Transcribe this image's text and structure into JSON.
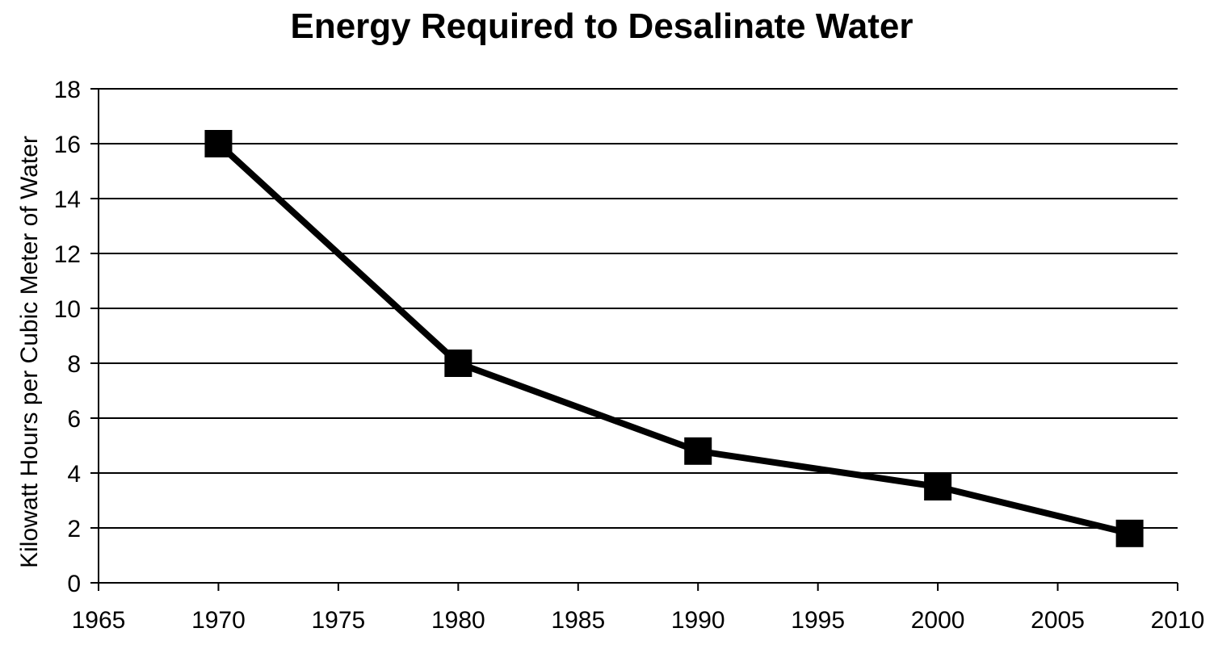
{
  "chart_data": {
    "type": "line",
    "title": "Energy Required to Desalinate Water",
    "xlabel": "",
    "ylabel": "Kilowatt Hours per Cubic Meter of Water",
    "xlim": [
      1965,
      2010
    ],
    "ylim": [
      0,
      18
    ],
    "x_ticks": [
      1965,
      1970,
      1975,
      1980,
      1985,
      1990,
      1995,
      2000,
      2005,
      2010
    ],
    "y_ticks": [
      0,
      2,
      4,
      6,
      8,
      10,
      12,
      14,
      16,
      18
    ],
    "grid": "horizontal",
    "marker": "square",
    "line_color": "#000000",
    "series": [
      {
        "x": [
          1970,
          1980,
          1990,
          2000,
          2008
        ],
        "y": [
          16,
          8,
          4.8,
          3.5,
          1.8
        ]
      }
    ]
  }
}
